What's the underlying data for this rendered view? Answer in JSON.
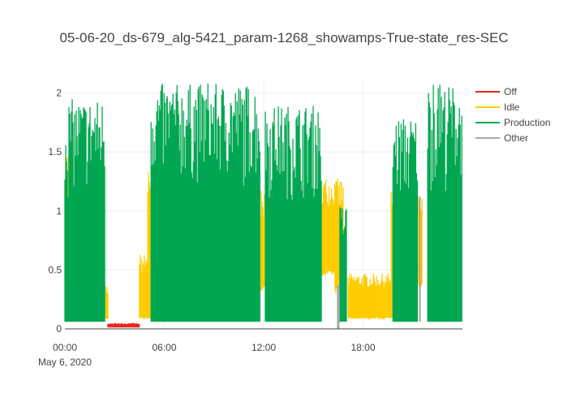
{
  "chart_data": {
    "type": "area",
    "title": "05-06-20_ds-679_alg-5421_param-1268_showamps-True-state_res-SEC",
    "xlabel": "",
    "ylabel": "",
    "x_range_hours": [
      0,
      24
    ],
    "ylim": [
      0,
      2.1
    ],
    "x_ticks": [
      {
        "hour": 0,
        "label": "00:00",
        "sublabel": "May 6, 2020"
      },
      {
        "hour": 6,
        "label": "06:00",
        "sublabel": ""
      },
      {
        "hour": 12,
        "label": "12:00",
        "sublabel": ""
      },
      {
        "hour": 18,
        "label": "18:00",
        "sublabel": ""
      }
    ],
    "y_ticks": [
      {
        "value": 0,
        "label": "0"
      },
      {
        "value": 0.5,
        "label": "0.5"
      },
      {
        "value": 1,
        "label": "1"
      },
      {
        "value": 1.5,
        "label": "1.5"
      },
      {
        "value": 2,
        "label": "2"
      }
    ],
    "grid": true,
    "legend_position": "top-right",
    "series": [
      {
        "name": "Off",
        "color": "#e8261c",
        "segments": [
          {
            "start": 2.6,
            "end": 4.5,
            "low": 0.02,
            "high": 0.05
          }
        ]
      },
      {
        "name": "Idle",
        "color": "#ffcc00",
        "segments": [
          {
            "start": 0.0,
            "end": 0.5,
            "low": 0.35,
            "high": 1.55
          },
          {
            "start": 2.3,
            "end": 2.6,
            "low": 0.08,
            "high": 0.37
          },
          {
            "start": 4.5,
            "end": 5.3,
            "low": 0.08,
            "high": 0.64
          },
          {
            "start": 5.0,
            "end": 5.3,
            "low": 0.1,
            "high": 1.35
          },
          {
            "start": 11.75,
            "end": 12.15,
            "low": 0.32,
            "high": 1.17
          },
          {
            "start": 15.5,
            "end": 16.4,
            "low": 0.45,
            "high": 1.3
          },
          {
            "start": 16.3,
            "end": 16.8,
            "low": 0.3,
            "high": 1.28
          },
          {
            "start": 17.1,
            "end": 19.8,
            "low": 0.08,
            "high": 0.47
          },
          {
            "start": 19.7,
            "end": 21.6,
            "low": 0.35,
            "high": 1.2
          }
        ]
      },
      {
        "name": "Production",
        "color": "#00a651",
        "segments": [
          {
            "start": 0.0,
            "end": 2.4,
            "low": 0.06,
            "high": 1.95
          },
          {
            "start": 5.2,
            "end": 11.8,
            "low": 0.06,
            "high": 2.08
          },
          {
            "start": 12.1,
            "end": 15.5,
            "low": 0.06,
            "high": 1.9
          },
          {
            "start": 16.6,
            "end": 17.0,
            "low": 0.06,
            "high": 1.05
          },
          {
            "start": 19.8,
            "end": 21.3,
            "low": 0.06,
            "high": 1.8
          },
          {
            "start": 21.9,
            "end": 24.0,
            "low": 0.06,
            "high": 2.07
          }
        ]
      },
      {
        "name": "Other",
        "color": "#aaaaaa",
        "segments": [
          {
            "start": 16.45,
            "end": 16.55,
            "low": 0.0,
            "high": 0.37
          },
          {
            "start": 21.4,
            "end": 21.45,
            "low": 0.06,
            "high": 1.12
          }
        ]
      }
    ]
  }
}
